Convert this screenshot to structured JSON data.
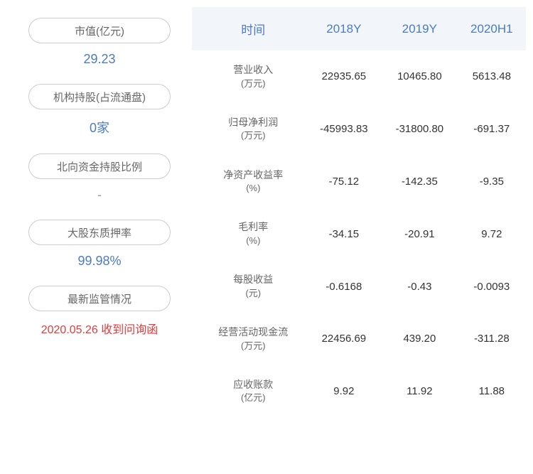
{
  "left_cards": [
    {
      "label": "市值(亿元)",
      "value": "29.23",
      "value_class": ""
    },
    {
      "label": "机构持股(占流通盘)",
      "value": "0家",
      "value_class": ""
    },
    {
      "label": "北向资金持股比例",
      "value": "-",
      "value_class": "grey"
    },
    {
      "label": "大股东质押率",
      "value": "99.98%",
      "value_class": ""
    },
    {
      "label": "最新监管情况",
      "value": "2020.05.26 收到问询函",
      "value_class": "red"
    }
  ],
  "table": {
    "headers": [
      "时间",
      "2018Y",
      "2019Y",
      "2020H1"
    ],
    "rows": [
      {
        "metric": "营业收入",
        "unit": "(万元)",
        "values": [
          "22935.65",
          "10465.80",
          "5613.48"
        ]
      },
      {
        "metric": "归母净利润",
        "unit": "(万元)",
        "values": [
          "-45993.83",
          "-31800.80",
          "-691.37"
        ]
      },
      {
        "metric": "净资产收益率",
        "unit": "(%)",
        "values": [
          "-75.12",
          "-142.35",
          "-9.35"
        ]
      },
      {
        "metric": "毛利率",
        "unit": "(%)",
        "values": [
          "-34.15",
          "-20.91",
          "9.72"
        ]
      },
      {
        "metric": "每股收益",
        "unit": "(元)",
        "values": [
          "-0.6168",
          "-0.43",
          "-0.0093"
        ]
      },
      {
        "metric": "经营活动现金流",
        "unit": "(万元)",
        "values": [
          "22456.69",
          "439.20",
          "-311.28"
        ]
      },
      {
        "metric": "应收账款",
        "unit": "(亿元)",
        "values": [
          "9.92",
          "11.92",
          "11.88"
        ]
      }
    ]
  },
  "colors": {
    "header_bg": "#f2f6fb",
    "header_text": "#4a7bc8",
    "value_blue": "#4a7bc8",
    "value_red": "#e23b3b",
    "pill_border": "#cccccc",
    "label_grey": "#666666"
  }
}
